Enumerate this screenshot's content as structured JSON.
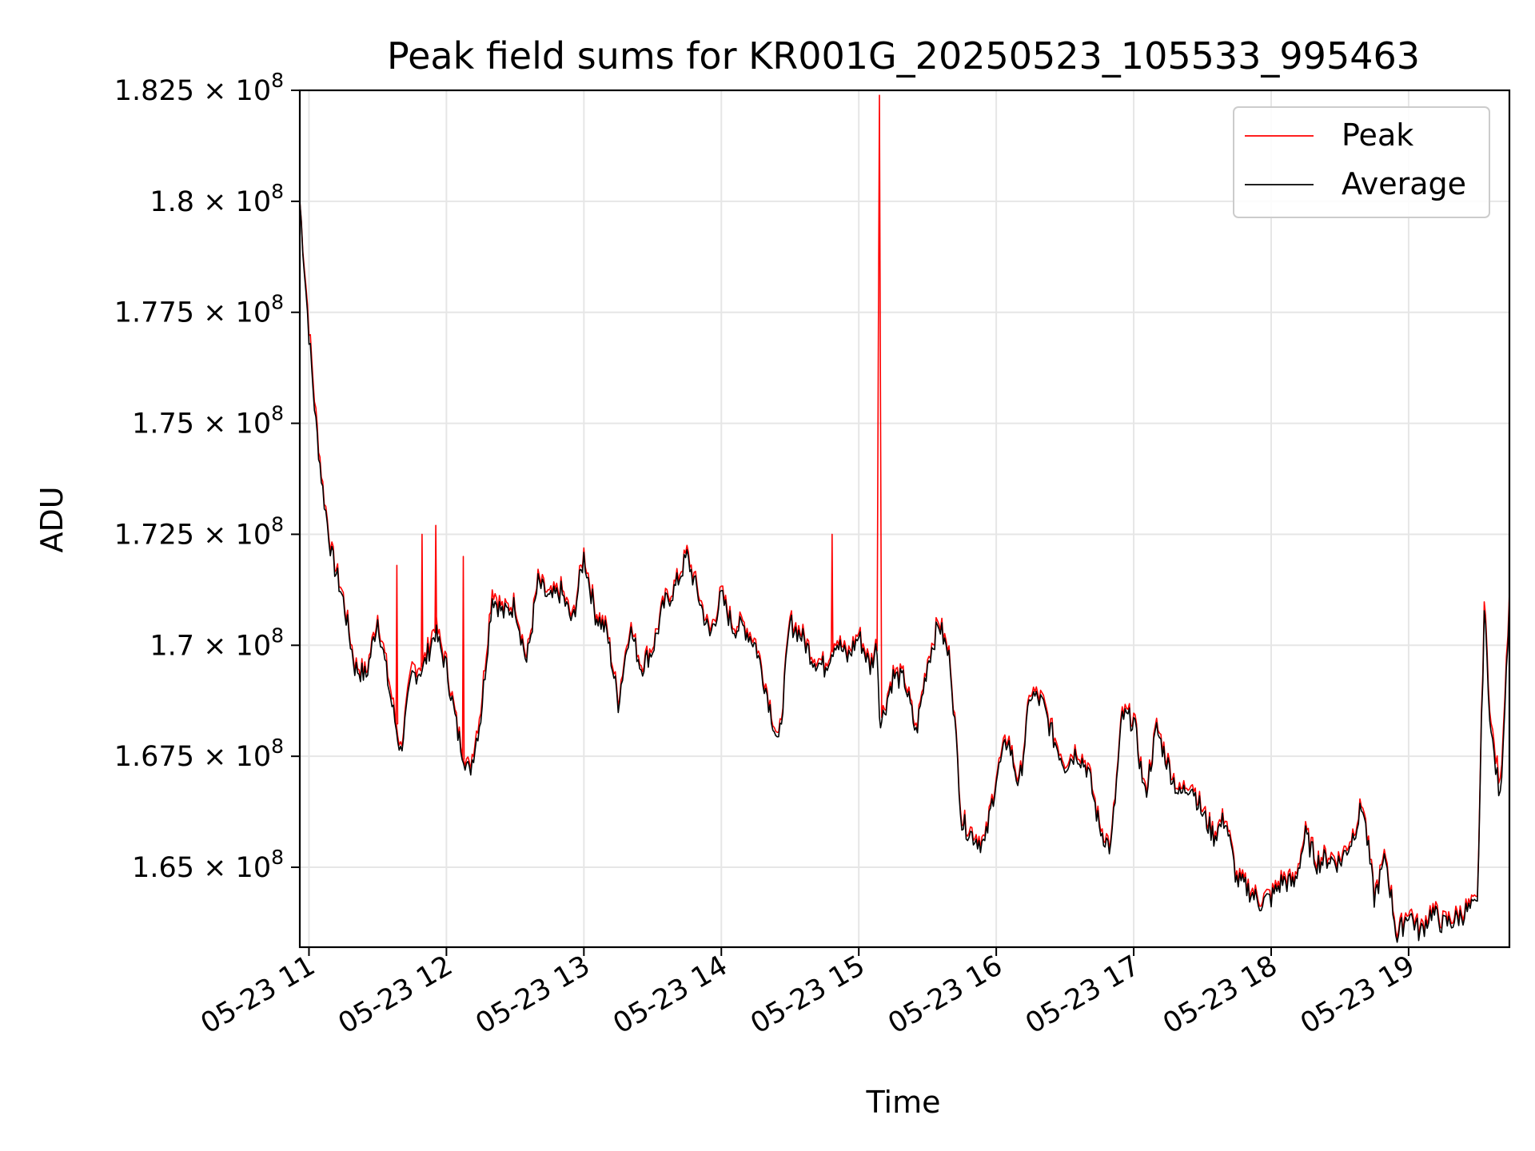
{
  "chart_data": {
    "type": "line",
    "title": "Peak field sums for KR001G_20250523_105533_995463",
    "xlabel": "Time",
    "ylabel": "ADU",
    "xlim": [
      "2025-05-23 10:56",
      "2025-05-23 19:44"
    ],
    "ylim": [
      163200000,
      182500000
    ],
    "x_ticks": [
      "05-23 11",
      "05-23 12",
      "05-23 13",
      "05-23 14",
      "05-23 15",
      "05-23 16",
      "05-23 17",
      "05-23 18",
      "05-23 19"
    ],
    "y_ticks": [
      {
        "value": 165000000,
        "mantissa": "1.65",
        "exp": "8"
      },
      {
        "value": 167500000,
        "mantissa": "1.675",
        "exp": "8"
      },
      {
        "value": 170000000,
        "mantissa": "1.7",
        "exp": "8"
      },
      {
        "value": 172500000,
        "mantissa": "1.725",
        "exp": "8"
      },
      {
        "value": 175000000,
        "mantissa": "1.75",
        "exp": "8"
      },
      {
        "value": 177500000,
        "mantissa": "1.775",
        "exp": "8"
      },
      {
        "value": 180000000,
        "mantissa": "1.8",
        "exp": "8"
      },
      {
        "value": 182500000,
        "mantissa": "1.825",
        "exp": "8"
      }
    ],
    "times_symbol": "×",
    "base": "10",
    "grid": true,
    "legend_position": "top-right",
    "series": [
      {
        "name": "Peak",
        "color": "#ff0000"
      },
      {
        "name": "Average",
        "color": "#000000"
      }
    ],
    "x": [
      "10:56",
      "11:00",
      "11:03",
      "11:06",
      "11:10",
      "11:15",
      "11:20",
      "11:25",
      "11:30",
      "11:35",
      "11:40",
      "11:45",
      "11:50",
      "11:55",
      "12:00",
      "12:05",
      "12:10",
      "12:15",
      "12:20",
      "12:25",
      "12:30",
      "12:35",
      "12:40",
      "12:45",
      "12:50",
      "12:55",
      "13:00",
      "13:05",
      "13:10",
      "13:15",
      "13:20",
      "13:25",
      "13:30",
      "13:35",
      "13:40",
      "13:45",
      "13:50",
      "13:55",
      "14:00",
      "14:05",
      "14:10",
      "14:15",
      "14:20",
      "14:25",
      "14:30",
      "14:35",
      "14:40",
      "14:45",
      "14:50",
      "14:55",
      "15:00",
      "15:05",
      "15:08",
      "15:09",
      "15:10",
      "15:15",
      "15:20",
      "15:25",
      "15:30",
      "15:35",
      "15:40",
      "15:45",
      "15:50",
      "15:55",
      "16:00",
      "16:05",
      "16:10",
      "16:15",
      "16:20",
      "16:25",
      "16:30",
      "16:35",
      "16:40",
      "16:45",
      "16:50",
      "16:55",
      "17:00",
      "17:05",
      "17:10",
      "17:15",
      "17:20",
      "17:25",
      "17:30",
      "17:35",
      "17:40",
      "17:45",
      "17:50",
      "17:55",
      "18:00",
      "18:05",
      "18:10",
      "18:15",
      "18:20",
      "18:25",
      "18:30",
      "18:35",
      "18:40",
      "18:45",
      "18:50",
      "18:55",
      "19:00",
      "19:05",
      "19:10",
      "19:15",
      "19:20",
      "19:25",
      "19:30",
      "19:33",
      "19:36",
      "19:40",
      "19:44"
    ],
    "average": [
      180000000,
      177000000,
      175000000,
      173500000,
      172000000,
      171000000,
      169500000,
      169300000,
      170600000,
      169000000,
      167600000,
      169300000,
      169500000,
      170300000,
      169500000,
      168000000,
      167100000,
      168400000,
      171100000,
      170700000,
      170900000,
      169600000,
      171400000,
      171000000,
      171200000,
      170500000,
      172000000,
      170700000,
      170300000,
      168700000,
      170400000,
      169500000,
      169900000,
      170900000,
      171300000,
      172000000,
      171100000,
      170200000,
      171100000,
      170400000,
      170400000,
      170000000,
      168900000,
      167700000,
      170500000,
      170200000,
      169700000,
      169500000,
      170100000,
      169700000,
      170200000,
      169500000,
      170000000,
      168500000,
      168300000,
      169300000,
      169200000,
      168000000,
      169600000,
      170500000,
      169600000,
      166000000,
      165700000,
      165500000,
      167000000,
      167900000,
      166800000,
      168900000,
      168700000,
      167900000,
      167300000,
      167600000,
      167200000,
      165900000,
      165400000,
      168400000,
      168300000,
      166600000,
      168100000,
      167300000,
      166600000,
      166900000,
      166200000,
      165700000,
      166100000,
      164700000,
      164500000,
      164200000,
      164300000,
      164700000,
      164600000,
      165700000,
      165100000,
      165200000,
      165100000,
      165600000,
      166400000,
      164300000,
      165200000,
      163400000,
      164000000,
      163500000,
      164000000,
      163700000,
      163800000,
      164000000,
      164100000,
      170800000,
      168000000,
      166500000,
      171000000
    ],
    "peak": [
      180000000,
      177200000,
      175200000,
      173600000,
      172100000,
      171100000,
      169600000,
      169400000,
      170700000,
      169200000,
      167700000,
      169500000,
      169600000,
      170500000,
      169600000,
      168100000,
      167200000,
      168600000,
      171300000,
      170800000,
      171000000,
      169700000,
      171500000,
      171100000,
      171300000,
      170600000,
      172100000,
      170800000,
      170400000,
      168800000,
      170500000,
      169600000,
      170000000,
      171000000,
      171400000,
      172100000,
      171200000,
      170300000,
      171200000,
      170500000,
      170500000,
      170100000,
      169000000,
      167800000,
      170600000,
      170300000,
      169800000,
      169600000,
      170200000,
      169800000,
      170300000,
      169600000,
      170100000,
      182500000,
      168400000,
      169400000,
      169300000,
      168100000,
      169700000,
      170600000,
      169700000,
      166100000,
      165800000,
      165600000,
      167100000,
      168000000,
      166900000,
      169000000,
      168800000,
      168000000,
      167400000,
      167700000,
      167300000,
      166000000,
      165500000,
      168500000,
      168400000,
      166700000,
      168200000,
      167400000,
      166700000,
      167000000,
      166300000,
      165800000,
      166200000,
      164800000,
      164600000,
      164300000,
      164400000,
      164800000,
      164700000,
      165800000,
      165200000,
      165300000,
      165200000,
      165700000,
      166500000,
      164400000,
      165300000,
      163500000,
      164100000,
      163600000,
      164100000,
      163800000,
      163900000,
      164100000,
      164200000,
      171000000,
      168200000,
      166800000,
      171200000
    ],
    "spikes": [
      {
        "x": "11:38",
        "peak": 171800000
      },
      {
        "x": "11:49",
        "peak": 172500000
      },
      {
        "x": "11:55",
        "peak": 172700000
      },
      {
        "x": "12:07",
        "peak": 172000000
      },
      {
        "x": "14:48",
        "peak": 172500000
      }
    ]
  }
}
